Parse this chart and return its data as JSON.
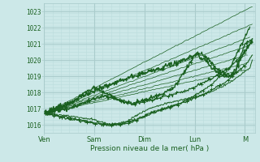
{
  "xlabel": "Pression niveau de la mer( hPa )",
  "bg_color": "#cce8e8",
  "grid_major_color": "#aacccc",
  "grid_minor_color": "#bbdddd",
  "line_color": "#1a6020",
  "ylim": [
    1015.5,
    1023.5
  ],
  "xlim": [
    0.0,
    4.2
  ],
  "yticks": [
    1016,
    1017,
    1018,
    1019,
    1020,
    1021,
    1022,
    1023
  ],
  "xtick_labels": [
    "Ven",
    "Sam",
    "Dim",
    "Lun",
    "M"
  ],
  "xtick_positions": [
    0,
    1,
    2,
    3,
    4
  ],
  "font_color": "#1a6020",
  "font_size_y": 5.5,
  "font_size_x": 6.0,
  "font_size_label": 6.5
}
